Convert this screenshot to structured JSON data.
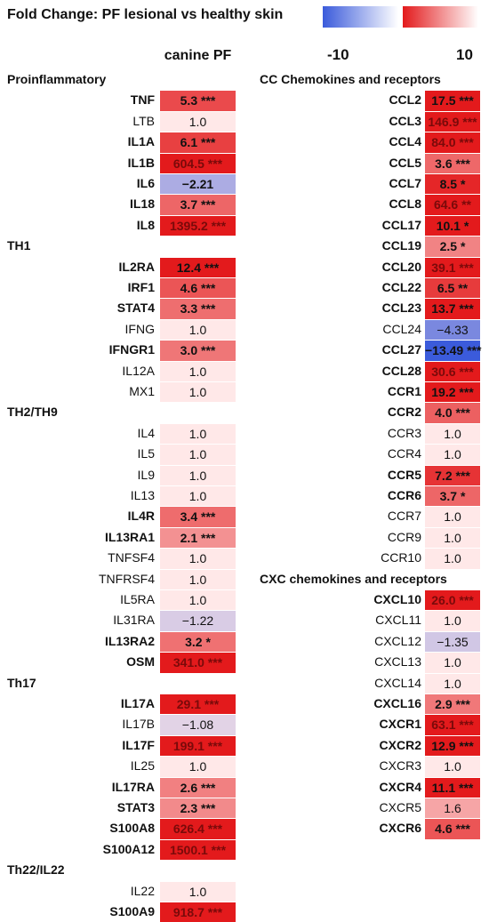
{
  "title": "Fold Change: PF lesional vs healthy skin",
  "colors": {
    "negative": "#3b5bdb",
    "positive": "#e31a1c",
    "neutral": "#ffe8e8"
  },
  "chart_data": {
    "type": "heatmap",
    "column": "canine PF",
    "color_scale": {
      "min_label": "-10",
      "max_label": "10",
      "min": -10,
      "max": 10
    },
    "columns": [
      {
        "sections": [
          {
            "title": "Proinflammatory",
            "rows": [
              {
                "gene": "TNF",
                "value": 5.3,
                "label": "5.3 ***",
                "significant": true
              },
              {
                "gene": "LTB",
                "value": 1.0,
                "label": "1.0",
                "significant": false
              },
              {
                "gene": "IL1A",
                "value": 6.1,
                "label": "6.1 ***",
                "significant": true
              },
              {
                "gene": "IL1B",
                "value": 604.5,
                "label": "604.5 ***",
                "significant": true
              },
              {
                "gene": "IL6",
                "value": -2.21,
                "label": "−2.21",
                "significant": true
              },
              {
                "gene": "IL18",
                "value": 3.7,
                "label": "3.7 ***",
                "significant": true
              },
              {
                "gene": "IL8",
                "value": 1395.2,
                "label": "1395.2 ***",
                "significant": true
              }
            ]
          },
          {
            "title": "TH1",
            "rows": [
              {
                "gene": "IL2RA",
                "value": 12.4,
                "label": "12.4 ***",
                "significant": true
              },
              {
                "gene": "IRF1",
                "value": 4.6,
                "label": "4.6 ***",
                "significant": true
              },
              {
                "gene": "STAT4",
                "value": 3.3,
                "label": "3.3 ***",
                "significant": true
              },
              {
                "gene": "IFNG",
                "value": 1.0,
                "label": "1.0",
                "significant": false
              },
              {
                "gene": "IFNGR1",
                "value": 3.0,
                "label": "3.0 ***",
                "significant": true
              },
              {
                "gene": "IL12A",
                "value": 1.0,
                "label": "1.0",
                "significant": false
              },
              {
                "gene": "MX1",
                "value": 1.0,
                "label": "1.0",
                "significant": false
              }
            ]
          },
          {
            "title": "TH2/TH9",
            "rows": [
              {
                "gene": "IL4",
                "value": 1.0,
                "label": "1.0",
                "significant": false
              },
              {
                "gene": "IL5",
                "value": 1.0,
                "label": "1.0",
                "significant": false
              },
              {
                "gene": "IL9",
                "value": 1.0,
                "label": "1.0",
                "significant": false
              },
              {
                "gene": "IL13",
                "value": 1.0,
                "label": "1.0",
                "significant": false
              },
              {
                "gene": "IL4R",
                "value": 3.4,
                "label": "3.4 ***",
                "significant": true
              },
              {
                "gene": "IL13RA1",
                "value": 2.1,
                "label": "2.1 ***",
                "significant": true
              },
              {
                "gene": "TNFSF4",
                "value": 1.0,
                "label": "1.0",
                "significant": false
              },
              {
                "gene": "TNFRSF4",
                "value": 1.0,
                "label": "1.0",
                "significant": false
              },
              {
                "gene": "IL5RA",
                "value": 1.0,
                "label": "1.0",
                "significant": false
              },
              {
                "gene": "IL31RA",
                "value": -1.22,
                "label": "−1.22",
                "significant": false
              },
              {
                "gene": "IL13RA2",
                "value": 3.2,
                "label": "3.2 *",
                "significant": true
              },
              {
                "gene": "OSM",
                "value": 341.0,
                "label": "341.0 ***",
                "significant": true
              }
            ]
          },
          {
            "title": "Th17",
            "rows": [
              {
                "gene": "IL17A",
                "value": 29.1,
                "label": "29.1 ***",
                "significant": true
              },
              {
                "gene": "IL17B",
                "value": -1.08,
                "label": "−1.08",
                "significant": false
              },
              {
                "gene": "IL17F",
                "value": 199.1,
                "label": "199.1 ***",
                "significant": true
              },
              {
                "gene": "IL25",
                "value": 1.0,
                "label": "1.0",
                "significant": false
              },
              {
                "gene": "IL17RA",
                "value": 2.6,
                "label": "2.6 ***",
                "significant": true
              },
              {
                "gene": "STAT3",
                "value": 2.3,
                "label": "2.3 ***",
                "significant": true
              },
              {
                "gene": "S100A8",
                "value": 626.4,
                "label": "626.4 ***",
                "significant": true
              },
              {
                "gene": "S100A12",
                "value": 1500.1,
                "label": "1500.1 ***",
                "significant": true
              }
            ]
          },
          {
            "title": "Th22/IL22",
            "rows": [
              {
                "gene": "IL22",
                "value": 1.0,
                "label": "1.0",
                "significant": false
              },
              {
                "gene": "S100A9",
                "value": 918.7,
                "label": "918.7 ***",
                "significant": true
              }
            ]
          }
        ]
      },
      {
        "sections": [
          {
            "title": "CC Chemokines and receptors",
            "rows": [
              {
                "gene": "CCL2",
                "value": 17.5,
                "label": "17.5 ***",
                "significant": true
              },
              {
                "gene": "CCL3",
                "value": 146.9,
                "label": "146.9 ***",
                "significant": true
              },
              {
                "gene": "CCL4",
                "value": 84.0,
                "label": "84.0 ***",
                "significant": true
              },
              {
                "gene": "CCL5",
                "value": 3.6,
                "label": "3.6 ***",
                "significant": true
              },
              {
                "gene": "CCL7",
                "value": 8.5,
                "label": "8.5 *",
                "significant": true
              },
              {
                "gene": "CCL8",
                "value": 64.6,
                "label": "64.6 **",
                "significant": true
              },
              {
                "gene": "CCL17",
                "value": 10.1,
                "label": "10.1 *",
                "significant": true
              },
              {
                "gene": "CCL19",
                "value": 2.5,
                "label": "2.5 *",
                "significant": true
              },
              {
                "gene": "CCL20",
                "value": 39.1,
                "label": "39.1 ***",
                "significant": true
              },
              {
                "gene": "CCL22",
                "value": 6.5,
                "label": "6.5 **",
                "significant": true
              },
              {
                "gene": "CCL23",
                "value": 13.7,
                "label": "13.7 ***",
                "significant": true
              },
              {
                "gene": "CCL24",
                "value": -4.33,
                "label": "−4.33",
                "significant": false
              },
              {
                "gene": "CCL27",
                "value": -13.49,
                "label": "−13.49 ***",
                "significant": true
              },
              {
                "gene": "CCL28",
                "value": 30.6,
                "label": "30.6 ***",
                "significant": true
              },
              {
                "gene": "CCR1",
                "value": 19.2,
                "label": "19.2 ***",
                "significant": true
              },
              {
                "gene": "CCR2",
                "value": 4.0,
                "label": "4.0 ***",
                "significant": true
              },
              {
                "gene": "CCR3",
                "value": 1.0,
                "label": "1.0",
                "significant": false
              },
              {
                "gene": "CCR4",
                "value": 1.0,
                "label": "1.0",
                "significant": false
              },
              {
                "gene": "CCR5",
                "value": 7.2,
                "label": "7.2 ***",
                "significant": true
              },
              {
                "gene": "CCR6",
                "value": 3.7,
                "label": "3.7 *",
                "significant": true
              },
              {
                "gene": "CCR7",
                "value": 1.0,
                "label": "1.0",
                "significant": false
              },
              {
                "gene": "CCR9",
                "value": 1.0,
                "label": "1.0",
                "significant": false
              },
              {
                "gene": "CCR10",
                "value": 1.0,
                "label": "1.0",
                "significant": false
              }
            ]
          },
          {
            "title": "CXC chemokines and receptors",
            "rows": [
              {
                "gene": "CXCL10",
                "value": 26.0,
                "label": "26.0 ***",
                "significant": true
              },
              {
                "gene": "CXCL11",
                "value": 1.0,
                "label": "1.0",
                "significant": false
              },
              {
                "gene": "CXCL12",
                "value": -1.35,
                "label": "−1.35",
                "significant": false
              },
              {
                "gene": "CXCL13",
                "value": 1.0,
                "label": "1.0",
                "significant": false
              },
              {
                "gene": "CXCL14",
                "value": 1.0,
                "label": "1.0",
                "significant": false
              },
              {
                "gene": "CXCL16",
                "value": 2.9,
                "label": "2.9 ***",
                "significant": true
              },
              {
                "gene": "CXCR1",
                "value": 63.1,
                "label": "63.1 ***",
                "significant": true
              },
              {
                "gene": "CXCR2",
                "value": 12.9,
                "label": "12.9 ***",
                "significant": true
              },
              {
                "gene": "CXCR3",
                "value": 1.0,
                "label": "1.0",
                "significant": false
              },
              {
                "gene": "CXCR4",
                "value": 11.1,
                "label": "11.1 ***",
                "significant": true
              },
              {
                "gene": "CXCR5",
                "value": 1.6,
                "label": "1.6",
                "significant": false
              },
              {
                "gene": "CXCR6",
                "value": 4.6,
                "label": "4.6 ***",
                "significant": true
              }
            ]
          }
        ]
      }
    ]
  }
}
